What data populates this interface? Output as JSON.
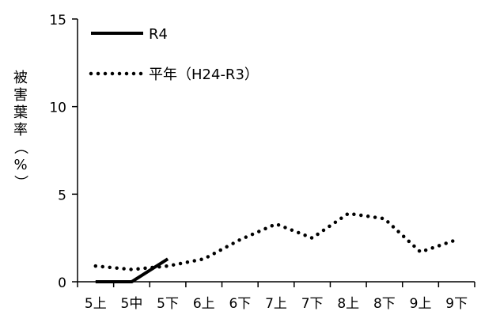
{
  "chart_data": {
    "type": "line",
    "categories": [
      "5上",
      "5中",
      "5下",
      "6上",
      "6下",
      "7上",
      "7下",
      "8上",
      "8下",
      "9上",
      "9下"
    ],
    "ylabel": "被害葉率（%）",
    "ylim": [
      0,
      15
    ],
    "yticks": [
      0,
      5,
      10,
      15
    ],
    "grid": false,
    "legend_position": "top-left",
    "series": [
      {
        "name": "R4",
        "style": "solid",
        "color": "#000000",
        "values": [
          0,
          0,
          1.3,
          null,
          null,
          null,
          null,
          null,
          null,
          null,
          null
        ]
      },
      {
        "name": "平年（H24-R3）",
        "style": "dotted",
        "color": "#000000",
        "values": [
          0.9,
          0.7,
          0.9,
          1.3,
          2.4,
          3.3,
          2.5,
          3.9,
          3.6,
          1.7,
          2.4
        ]
      }
    ]
  }
}
